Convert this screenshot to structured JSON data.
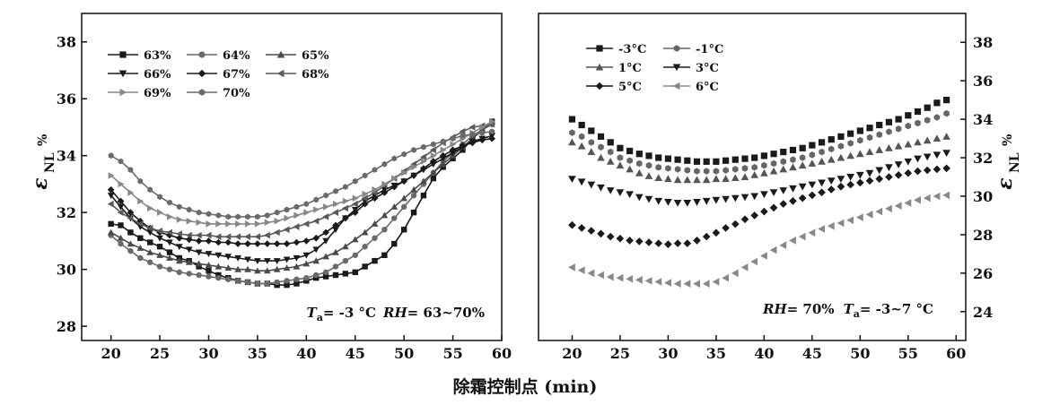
{
  "xlabel": "除霜控制点 (min)",
  "chart_data": [
    {
      "type": "line",
      "x": [
        20,
        21,
        22,
        23,
        24,
        25,
        26,
        27,
        28,
        29,
        30,
        31,
        32,
        33,
        34,
        35,
        36,
        37,
        38,
        39,
        40,
        41,
        42,
        43,
        44,
        45,
        46,
        47,
        48,
        49,
        50,
        51,
        52,
        53,
        54,
        55,
        56,
        57,
        58,
        59
      ],
      "xlim": [
        17,
        60
      ],
      "xticks": [
        20,
        25,
        30,
        35,
        40,
        45,
        50,
        55,
        60
      ],
      "ylim": [
        27.5,
        39
      ],
      "yticks": [
        28,
        30,
        32,
        34,
        36,
        38
      ],
      "ylabel_main": "ε",
      "ylabel_sub": "NL",
      "ylabel_unit": "%",
      "annotation": {
        "t_sym": "T",
        "t_sub": "a",
        "t_val": "= -3 °C",
        "rh_sym": "RH",
        "rh_val": "= 63~70%"
      },
      "series": [
        {
          "name": "63%",
          "marker": "square",
          "color": "#1a1a1a",
          "values": [
            31.6,
            31.55,
            31.3,
            31.1,
            30.95,
            30.8,
            30.6,
            30.4,
            30.3,
            30.1,
            29.95,
            29.8,
            29.7,
            29.6,
            29.55,
            29.5,
            29.5,
            29.45,
            29.45,
            29.5,
            29.6,
            29.7,
            29.75,
            29.8,
            29.85,
            29.9,
            30.1,
            30.3,
            30.5,
            30.9,
            31.4,
            32.0,
            32.6,
            33.2,
            33.6,
            33.9,
            34.2,
            34.6,
            34.9,
            35.2
          ]
        },
        {
          "name": "64%",
          "marker": "circle",
          "color": "#6a6a6a",
          "values": [
            31.2,
            30.9,
            30.65,
            30.4,
            30.25,
            30.1,
            30.0,
            29.9,
            29.85,
            29.8,
            29.75,
            29.7,
            29.65,
            29.6,
            29.55,
            29.5,
            29.5,
            29.55,
            29.6,
            29.65,
            29.7,
            29.8,
            29.9,
            30.1,
            30.3,
            30.5,
            30.8,
            31.1,
            31.4,
            31.8,
            32.2,
            32.6,
            33.0,
            33.4,
            33.8,
            34.1,
            34.4,
            34.7,
            34.9,
            35.1
          ]
        },
        {
          "name": "65%",
          "marker": "triangle-up",
          "color": "#4a4a4a",
          "values": [
            31.3,
            31.1,
            30.9,
            30.75,
            30.6,
            30.5,
            30.4,
            30.3,
            30.25,
            30.2,
            30.15,
            30.1,
            30.05,
            30.0,
            30.0,
            29.95,
            29.95,
            30.0,
            30.05,
            30.1,
            30.2,
            30.3,
            30.45,
            30.6,
            30.8,
            31.05,
            31.3,
            31.6,
            31.9,
            32.2,
            32.5,
            32.8,
            33.1,
            33.4,
            33.7,
            34.0,
            34.3,
            34.6,
            34.9,
            35.2
          ]
        },
        {
          "name": "66%",
          "marker": "triangle-down",
          "color": "#1a1a1a",
          "values": [
            32.6,
            32.2,
            31.8,
            31.5,
            31.3,
            31.1,
            30.95,
            30.8,
            30.7,
            30.6,
            30.55,
            30.5,
            30.45,
            30.4,
            30.35,
            30.3,
            30.3,
            30.3,
            30.35,
            30.4,
            30.5,
            30.7,
            31.0,
            31.4,
            31.8,
            32.1,
            32.4,
            32.6,
            32.8,
            32.95,
            33.1,
            33.3,
            33.5,
            33.7,
            33.9,
            34.1,
            34.3,
            34.5,
            34.6,
            34.7
          ]
        },
        {
          "name": "67%",
          "marker": "diamond",
          "color": "#1a1a1a",
          "values": [
            32.8,
            32.4,
            32.0,
            31.7,
            31.45,
            31.3,
            31.2,
            31.1,
            31.05,
            31.0,
            31.0,
            30.95,
            30.95,
            30.9,
            30.9,
            30.9,
            30.9,
            30.9,
            30.9,
            30.95,
            31.0,
            31.1,
            31.3,
            31.55,
            31.8,
            32.0,
            32.3,
            32.5,
            32.7,
            32.9,
            33.1,
            33.3,
            33.55,
            33.8,
            34.0,
            34.2,
            34.35,
            34.45,
            34.55,
            34.6
          ]
        },
        {
          "name": "68%",
          "marker": "triangle-left",
          "color": "#5a5a5a",
          "values": [
            32.3,
            32.0,
            31.8,
            31.6,
            31.45,
            31.35,
            31.3,
            31.25,
            31.2,
            31.2,
            31.2,
            31.15,
            31.15,
            31.15,
            31.15,
            31.15,
            31.2,
            31.3,
            31.4,
            31.5,
            31.6,
            31.7,
            31.85,
            32.0,
            32.15,
            32.3,
            32.5,
            32.7,
            32.95,
            33.2,
            33.45,
            33.7,
            33.95,
            34.2,
            34.45,
            34.65,
            34.85,
            35.0,
            35.05,
            35.1
          ]
        },
        {
          "name": "69%",
          "marker": "triangle-right",
          "color": "#888888",
          "values": [
            33.3,
            33.0,
            32.7,
            32.4,
            32.15,
            32.0,
            31.85,
            31.75,
            31.7,
            31.65,
            31.6,
            31.6,
            31.6,
            31.6,
            31.6,
            31.6,
            31.65,
            31.7,
            31.8,
            31.9,
            32.0,
            32.1,
            32.2,
            32.3,
            32.4,
            32.5,
            32.65,
            32.8,
            33.0,
            33.2,
            33.4,
            33.6,
            33.8,
            34.0,
            34.2,
            34.4,
            34.6,
            34.8,
            35.0,
            35.2
          ]
        },
        {
          "name": "70%",
          "marker": "hexagon",
          "color": "#6a6a6a",
          "values": [
            34.0,
            33.8,
            33.5,
            33.1,
            32.8,
            32.55,
            32.35,
            32.2,
            32.1,
            32.0,
            31.95,
            31.9,
            31.85,
            31.85,
            31.85,
            31.85,
            31.9,
            32.0,
            32.1,
            32.2,
            32.3,
            32.45,
            32.6,
            32.75,
            32.9,
            33.1,
            33.3,
            33.5,
            33.7,
            33.9,
            34.05,
            34.2,
            34.3,
            34.4,
            34.5,
            34.6,
            34.7,
            34.75,
            34.8,
            34.85
          ]
        }
      ]
    },
    {
      "type": "scatter",
      "x": [
        20,
        21,
        22,
        23,
        24,
        25,
        26,
        27,
        28,
        29,
        30,
        31,
        32,
        33,
        34,
        35,
        36,
        37,
        38,
        39,
        40,
        41,
        42,
        43,
        44,
        45,
        46,
        47,
        48,
        49,
        50,
        51,
        52,
        53,
        54,
        55,
        56,
        57,
        58,
        59
      ],
      "xlim": [
        16.5,
        61
      ],
      "xticks": [
        20,
        25,
        30,
        35,
        40,
        45,
        50,
        55,
        60
      ],
      "ylim": [
        22.5,
        39.5
      ],
      "yticks": [
        24,
        26,
        28,
        30,
        32,
        34,
        36,
        38
      ],
      "ylabel_main": "ε",
      "ylabel_sub": "NL",
      "ylabel_unit": "%",
      "annotation": {
        "rh_sym": "RH",
        "rh_val": "= 70%",
        "t_sym": "T",
        "t_sub": "a",
        "t_val": "= -3~7 °C"
      },
      "series": [
        {
          "name": "-3°C",
          "marker": "square",
          "color": "#1a1a1a",
          "values": [
            34.0,
            33.7,
            33.4,
            33.1,
            32.8,
            32.5,
            32.35,
            32.2,
            32.1,
            32.0,
            31.95,
            31.9,
            31.85,
            31.8,
            31.8,
            31.8,
            31.85,
            31.9,
            31.95,
            32.0,
            32.1,
            32.2,
            32.3,
            32.4,
            32.5,
            32.65,
            32.8,
            32.95,
            33.1,
            33.25,
            33.4,
            33.55,
            33.7,
            33.85,
            34.0,
            34.2,
            34.4,
            34.6,
            34.85,
            35.0
          ]
        },
        {
          "name": "-1°C",
          "marker": "hexagon",
          "color": "#666666",
          "values": [
            33.3,
            33.1,
            32.8,
            32.55,
            32.3,
            32.0,
            31.85,
            31.7,
            31.6,
            31.5,
            31.45,
            31.4,
            31.35,
            31.3,
            31.3,
            31.3,
            31.35,
            31.4,
            31.45,
            31.5,
            31.6,
            31.7,
            31.8,
            31.9,
            32.0,
            32.15,
            32.3,
            32.45,
            32.6,
            32.75,
            32.9,
            33.05,
            33.2,
            33.35,
            33.5,
            33.65,
            33.8,
            33.95,
            34.1,
            34.3
          ]
        },
        {
          "name": "1°C",
          "marker": "triangle-up",
          "color": "#555555",
          "values": [
            32.8,
            32.6,
            32.3,
            32.0,
            31.8,
            31.6,
            31.4,
            31.2,
            31.05,
            30.95,
            30.9,
            30.85,
            30.85,
            30.85,
            30.85,
            30.9,
            30.9,
            30.95,
            31.0,
            31.1,
            31.2,
            31.3,
            31.4,
            31.5,
            31.6,
            31.7,
            31.8,
            31.9,
            32.0,
            32.1,
            32.2,
            32.3,
            32.4,
            32.5,
            32.6,
            32.7,
            32.8,
            32.9,
            33.0,
            33.1
          ]
        },
        {
          "name": "3°C",
          "marker": "triangle-down",
          "color": "#1a1a1a",
          "values": [
            30.9,
            30.75,
            30.6,
            30.45,
            30.3,
            30.2,
            30.1,
            29.95,
            29.85,
            29.75,
            29.7,
            29.65,
            29.65,
            29.7,
            29.75,
            29.8,
            29.85,
            29.9,
            29.95,
            30.0,
            30.1,
            30.2,
            30.3,
            30.4,
            30.5,
            30.6,
            30.7,
            30.8,
            30.9,
            31.0,
            31.1,
            31.2,
            31.35,
            31.5,
            31.65,
            31.8,
            31.95,
            32.05,
            32.15,
            32.25
          ]
        },
        {
          "name": "5°C",
          "marker": "diamond",
          "color": "#1a1a1a",
          "values": [
            28.5,
            28.35,
            28.2,
            28.05,
            27.9,
            27.8,
            27.7,
            27.65,
            27.6,
            27.55,
            27.5,
            27.55,
            27.55,
            27.7,
            27.9,
            28.1,
            28.35,
            28.55,
            28.8,
            29.0,
            29.2,
            29.4,
            29.6,
            29.75,
            29.9,
            30.05,
            30.2,
            30.35,
            30.5,
            30.6,
            30.7,
            30.8,
            30.9,
            31.0,
            31.1,
            31.2,
            31.3,
            31.35,
            31.4,
            31.45
          ]
        },
        {
          "name": "6°C",
          "marker": "triangle-left",
          "color": "#888888",
          "values": [
            26.3,
            26.15,
            26.0,
            25.9,
            25.8,
            25.75,
            25.7,
            25.65,
            25.6,
            25.55,
            25.5,
            25.45,
            25.45,
            25.45,
            25.45,
            25.55,
            25.75,
            26.0,
            26.3,
            26.6,
            26.9,
            27.2,
            27.45,
            27.7,
            27.9,
            28.1,
            28.3,
            28.45,
            28.6,
            28.75,
            28.9,
            29.05,
            29.2,
            29.35,
            29.5,
            29.65,
            29.8,
            29.9,
            30.0,
            30.05
          ]
        }
      ]
    }
  ]
}
